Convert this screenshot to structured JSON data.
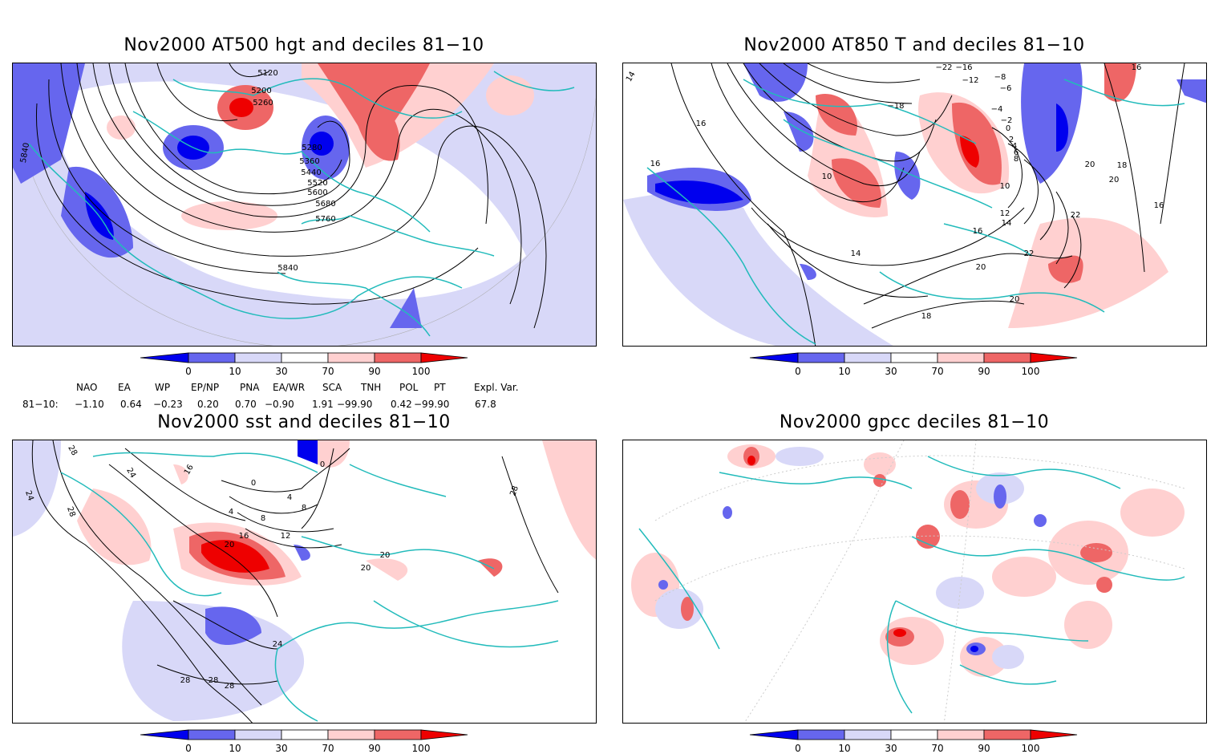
{
  "panels": [
    {
      "title": "Nov2000 AT500 hgt and deciles 81−10",
      "contour_labels": [
        "5120",
        "5200",
        "5260",
        "5280",
        "5360",
        "5440",
        "5520",
        "5600",
        "5680",
        "5760",
        "5840",
        "5840"
      ]
    },
    {
      "title": "Nov2000 AT850 T and deciles 81−10",
      "contour_labels": [
        "14",
        "16",
        "16",
        "16",
        "−22",
        "−16",
        "−12",
        "−8",
        "−6",
        "−18",
        "−4",
        "−2",
        "0",
        "2",
        "4",
        "6",
        "8",
        "10",
        "10",
        "12",
        "14",
        "16",
        "18",
        "20",
        "20",
        "22",
        "22",
        "20",
        "14",
        "18",
        "16",
        "20"
      ]
    },
    {
      "title": "Nov2000 sst and deciles 81−10",
      "contour_labels": [
        "28",
        "24",
        "24",
        "28",
        "16",
        "0",
        "0",
        "4",
        "4",
        "8",
        "8",
        "12",
        "16",
        "20",
        "20",
        "20",
        "24",
        "28",
        "28",
        "28",
        "28"
      ]
    },
    {
      "title": "Nov2000 gpcc deciles 81−10",
      "contour_labels": []
    }
  ],
  "colorbar": {
    "ticks": [
      "0",
      "10",
      "30",
      "70",
      "90",
      "100"
    ],
    "colors": [
      "#0000ee",
      "#6666ee",
      "#d8d8f8",
      "#ffffff",
      "#ffd0d0",
      "#ee6666",
      "#ee0000"
    ]
  },
  "indices": {
    "headers": [
      "NAO",
      "EA",
      "WP",
      "EP/NP",
      "PNA",
      "EA/WR",
      "SCA",
      "TNH",
      "POL",
      "PT",
      "Expl. Var."
    ],
    "row_label": "81−10:",
    "values": [
      "−1.10",
      "0.64",
      "−0.23",
      "0.20",
      "0.70",
      "−0.90",
      "1.91",
      "−99.90",
      "0.42",
      "−99.90",
      "67.8"
    ]
  },
  "colors": {
    "coast": "#22bbbb",
    "blue_strong": "#0000ee",
    "blue_mid": "#6666ee",
    "blue_light": "#d8d8f8",
    "red_light": "#ffd0d0",
    "red_mid": "#ee6666",
    "red_strong": "#ee0000"
  }
}
